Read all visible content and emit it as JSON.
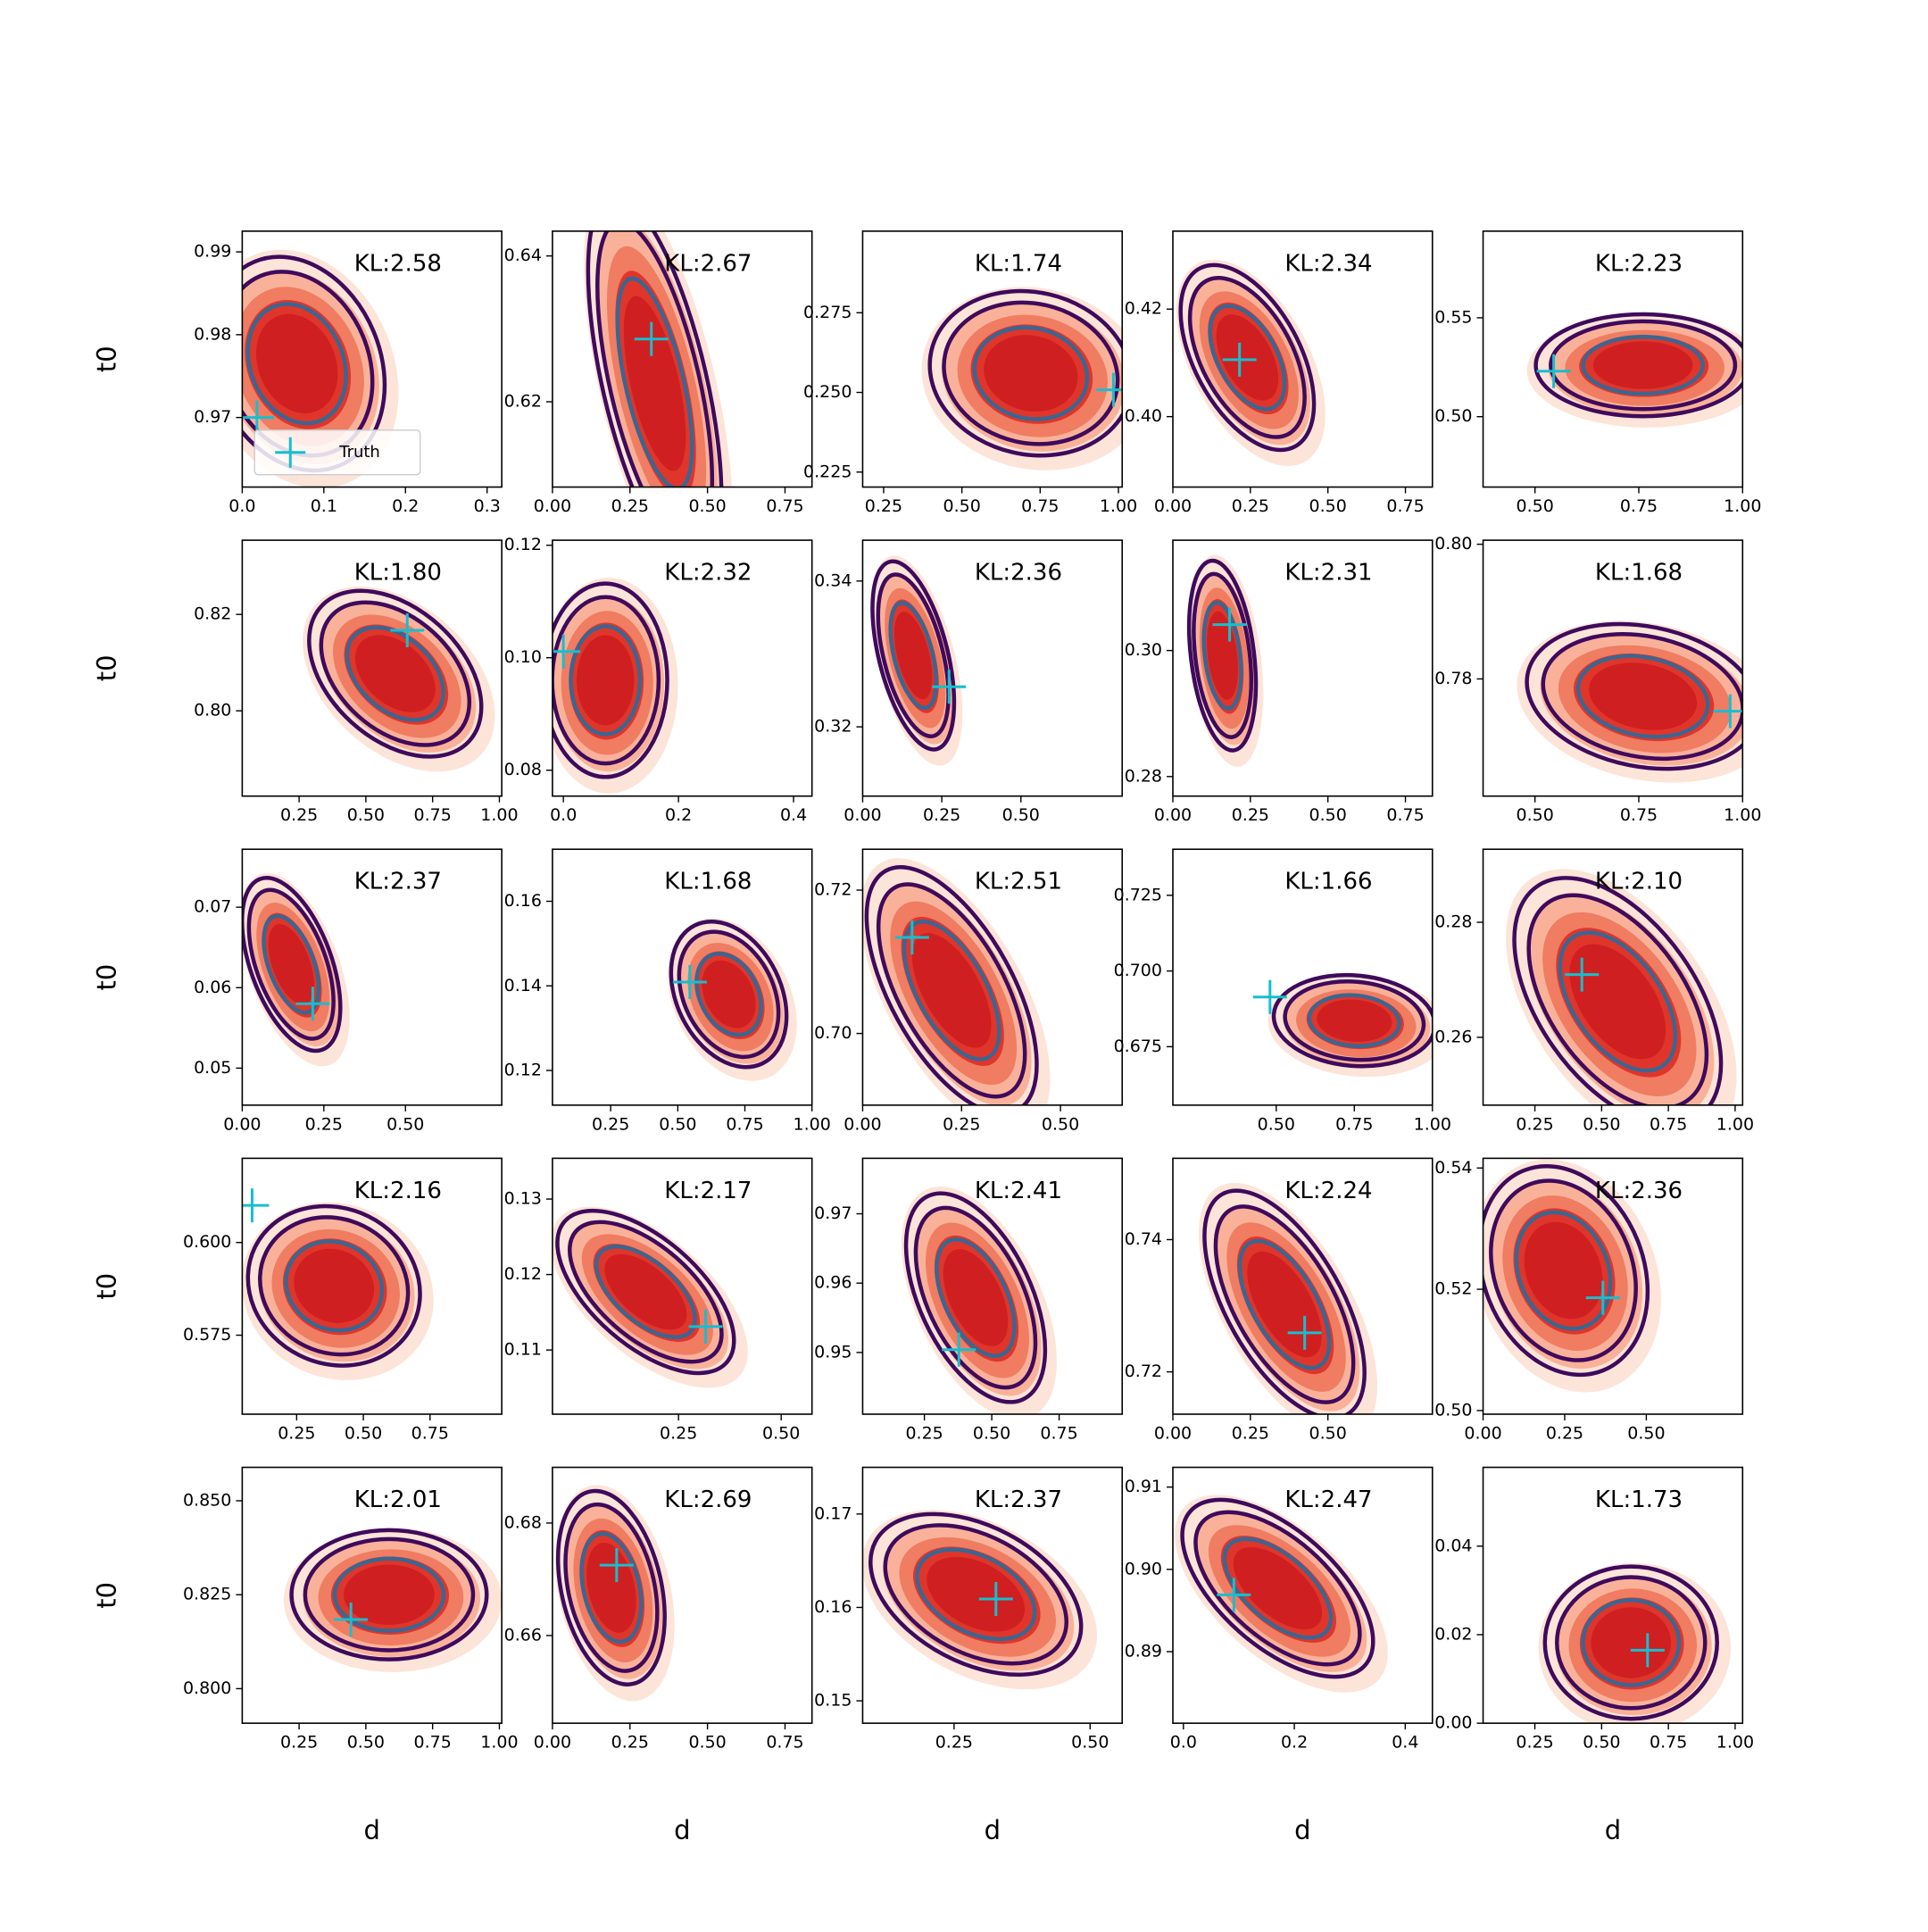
{
  "chart_data": [
    {
      "type": "scatter",
      "title": "KL:2.58",
      "ylabel": "t0",
      "xlim": [
        0,
        0.318
      ],
      "xticks": [
        {
          "value": 0,
          "label": "0.0"
        },
        0.1,
        0.2,
        0.3
      ],
      "ylim": [
        0.9616,
        0.9925
      ],
      "yticks": [
        0.97,
        0.98,
        0.99
      ],
      "series": [
        {
          "name": "Truth",
          "color": "#17becf",
          "x": [
            0.018
          ],
          "y": [
            0.97
          ]
        }
      ],
      "legend": "lower left",
      "density": {
        "center": [
          0.067,
          0.9765
        ],
        "spread": [
          0.05,
          0.006
        ],
        "rho": -0.2
      }
    },
    {
      "type": "scatter",
      "title": "KL:2.67",
      "xlim": [
        0,
        0.837
      ],
      "xticks": [
        {
          "value": 0,
          "label": "0.00"
        },
        0.25,
        {
          "value": 0.5,
          "label": "0.50"
        },
        0.75
      ],
      "ylim": [
        0.6083,
        0.6434
      ],
      "yticks": [
        0.62,
        0.64
      ],
      "series": [
        {
          "color": "#17becf",
          "x": [
            0.319
          ],
          "y": [
            0.6286
          ]
        }
      ],
      "density": {
        "center": [
          0.33,
          0.6225
        ],
        "spread": [
          0.1,
          0.012
        ],
        "rho": -0.6
      }
    },
    {
      "type": "scatter",
      "title": "KL:1.74",
      "xlim": [
        0.183,
        1.012
      ],
      "xticks": [
        0.25,
        {
          "value": 0.5,
          "label": "0.50"
        },
        0.75,
        {
          "value": 1,
          "label": "1.00"
        }
      ],
      "ylim": [
        0.2203,
        0.3006
      ],
      "yticks": [
        0.225,
        {
          "value": 0.25,
          "label": "0.250"
        },
        0.275
      ],
      "series": [
        {
          "color": "#17becf",
          "x": [
            0.984
          ],
          "y": [
            0.2508
          ]
        }
      ],
      "density": {
        "center": [
          0.72,
          0.256
        ],
        "spread": [
          0.15,
          0.012
        ],
        "rho": -0.1
      }
    },
    {
      "type": "scatter",
      "title": "KL:2.34",
      "xlim": [
        0,
        0.837
      ],
      "xticks": [
        {
          "value": 0,
          "label": "0.00"
        },
        0.25,
        {
          "value": 0.5,
          "label": "0.50"
        },
        0.75
      ],
      "ylim": [
        0.3869,
        0.4345
      ],
      "yticks": [
        {
          "value": 0.4,
          "label": "0.40"
        },
        0.42
      ],
      "series": [
        {
          "color": "#17becf",
          "x": [
            0.215
          ],
          "y": [
            0.4106
          ]
        }
      ],
      "density": {
        "center": [
          0.24,
          0.411
        ],
        "spread": [
          0.1,
          0.008
        ],
        "rho": -0.5
      }
    },
    {
      "type": "scatter",
      "title": "KL:2.23",
      "xlim": [
        0.375,
        1.0
      ],
      "xticks": [
        {
          "value": 0.5,
          "label": "0.50"
        },
        0.75,
        {
          "value": 1,
          "label": "1.00"
        }
      ],
      "ylim": [
        0.4644,
        0.5938
      ],
      "yticks": [
        {
          "value": 0.5,
          "label": "0.50"
        },
        0.55
      ],
      "series": [
        {
          "color": "#17becf",
          "x": [
            0.545
          ],
          "y": [
            0.523
          ]
        }
      ],
      "density": {
        "center": [
          0.76,
          0.526
        ],
        "spread": [
          0.12,
          0.012
        ],
        "rho": 0
      }
    },
    {
      "type": "scatter",
      "title": "KL:1.80",
      "ylabel": "t0",
      "xlim": [
        0.037,
        1.009
      ],
      "xticks": [
        0.25,
        {
          "value": 0.5,
          "label": "0.50"
        },
        0.75,
        {
          "value": 1,
          "label": "1.00"
        }
      ],
      "ylim": [
        0.7823,
        0.8354
      ],
      "yticks": [
        {
          "value": 0.8,
          "label": "0.80"
        },
        0.82
      ],
      "series": [
        {
          "color": "#17becf",
          "x": [
            0.655
          ],
          "y": [
            0.8167
          ]
        }
      ],
      "density": {
        "center": [
          0.61,
          0.8077
        ],
        "spread": [
          0.15,
          0.008
        ],
        "rho": -0.4
      }
    },
    {
      "type": "scatter",
      "title": "KL:2.32",
      "xlim": [
        -0.019,
        0.432
      ],
      "xticks": [
        {
          "value": 0,
          "label": "0.0"
        },
        0.2,
        0.4
      ],
      "ylim": [
        0.0754,
        0.1209
      ],
      "yticks": [
        0.08,
        {
          "value": 0.1,
          "label": "0.10"
        },
        0.12
      ],
      "series": [
        {
          "color": "#17becf",
          "x": [
            0.0
          ],
          "y": [
            0.1011
          ]
        }
      ],
      "density": {
        "center": [
          0.073,
          0.096
        ],
        "spread": [
          0.05,
          0.008
        ],
        "rho": 0
      }
    },
    {
      "type": "scatter",
      "title": "KL:2.36",
      "xlim": [
        0,
        0.82
      ],
      "xticks": [
        {
          "value": 0,
          "label": "0.00"
        },
        0.25,
        {
          "value": 0.5,
          "label": "0.50"
        }
      ],
      "ylim": [
        0.3105,
        0.3456
      ],
      "yticks": [
        0.32,
        0.34
      ],
      "series": [
        {
          "color": "#17becf",
          "x": [
            0.273
          ],
          "y": [
            0.3255
          ]
        }
      ],
      "density": {
        "center": [
          0.16,
          0.3298
        ],
        "spread": [
          0.06,
          0.006
        ],
        "rho": -0.5
      }
    },
    {
      "type": "scatter",
      "title": "KL:2.31",
      "xlim": [
        0,
        0.837
      ],
      "xticks": [
        {
          "value": 0,
          "label": "0.00"
        },
        0.25,
        {
          "value": 0.5,
          "label": "0.50"
        },
        0.75
      ],
      "ylim": [
        0.2769,
        0.3175
      ],
      "yticks": [
        0.28,
        {
          "value": 0.3,
          "label": "0.30"
        }
      ],
      "series": [
        {
          "color": "#17becf",
          "x": [
            0.183
          ],
          "y": [
            0.3041
          ]
        }
      ],
      "density": {
        "center": [
          0.16,
          0.2992
        ],
        "spread": [
          0.05,
          0.007
        ],
        "rho": -0.3
      }
    },
    {
      "type": "scatter",
      "title": "KL:1.68",
      "xlim": [
        0.375,
        1.0
      ],
      "xticks": [
        {
          "value": 0.5,
          "label": "0.50"
        },
        0.75,
        {
          "value": 1,
          "label": "1.00"
        }
      ],
      "ylim": [
        0.7626,
        0.8006
      ],
      "yticks": [
        0.78,
        {
          "value": 0.8,
          "label": "0.80"
        }
      ],
      "series": [
        {
          "color": "#17becf",
          "x": [
            0.97
          ],
          "y": [
            0.7752
          ]
        }
      ],
      "density": {
        "center": [
          0.76,
          0.7774
        ],
        "spread": [
          0.13,
          0.005
        ],
        "rho": -0.2
      }
    },
    {
      "type": "scatter",
      "title": "KL:2.37",
      "ylabel": "t0",
      "xlim": [
        0,
        0.795
      ],
      "xticks": [
        {
          "value": 0,
          "label": "0.00"
        },
        0.25,
        {
          "value": 0.5,
          "label": "0.50"
        }
      ],
      "ylim": [
        0.0454,
        0.0772
      ],
      "yticks": [
        0.05,
        0.06,
        0.07
      ],
      "series": [
        {
          "color": "#17becf",
          "x": [
            0.216
          ],
          "y": [
            0.058
          ]
        }
      ],
      "density": {
        "center": [
          0.15,
          0.0629
        ],
        "spread": [
          0.07,
          0.005
        ],
        "rho": -0.5
      }
    },
    {
      "type": "scatter",
      "title": "KL:1.68",
      "xlim": [
        0.033,
        1.0
      ],
      "xticks": [
        0.25,
        {
          "value": 0.5,
          "label": "0.50"
        },
        0.75,
        {
          "value": 1,
          "label": "1.00"
        }
      ],
      "ylim": [
        0.1118,
        0.1723
      ],
      "yticks": [
        0.12,
        0.14,
        0.16
      ],
      "series": [
        {
          "color": "#17becf",
          "x": [
            0.545
          ],
          "y": [
            0.1409
          ]
        }
      ],
      "density": {
        "center": [
          0.69,
          0.138
        ],
        "spread": [
          0.1,
          0.008
        ],
        "rho": -0.3
      }
    },
    {
      "type": "scatter",
      "title": "KL:2.51",
      "xlim": [
        0,
        0.656
      ],
      "xticks": [
        {
          "value": 0,
          "label": "0.00"
        },
        0.25,
        {
          "value": 0.5,
          "label": "0.50"
        }
      ],
      "ylim": [
        0.69,
        0.7257
      ],
      "yticks": [
        {
          "value": 0.7,
          "label": "0.70"
        },
        0.72
      ],
      "series": [
        {
          "color": "#17becf",
          "x": [
            0.125
          ],
          "y": [
            0.7134
          ]
        }
      ],
      "density": {
        "center": [
          0.225,
          0.706
        ],
        "spread": [
          0.1,
          0.008
        ],
        "rho": -0.6
      }
    },
    {
      "type": "scatter",
      "title": "KL:1.66",
      "xlim": [
        0.169,
        1.0
      ],
      "xticks": [
        {
          "value": 0.5,
          "label": "0.50"
        },
        0.75,
        {
          "value": 1,
          "label": "1.00"
        }
      ],
      "ylim": [
        0.6557,
        0.7402
      ],
      "yticks": [
        0.675,
        {
          "value": 0.7,
          "label": "0.700"
        },
        0.725
      ],
      "series": [
        {
          "color": "#17becf",
          "x": [
            0.48
          ],
          "y": [
            0.6914
          ]
        }
      ],
      "density": {
        "center": [
          0.75,
          0.6836
        ],
        "spread": [
          0.12,
          0.007
        ],
        "rho": -0.1
      }
    },
    {
      "type": "scatter",
      "title": "KL:2.10",
      "xlim": [
        0.056,
        1.028
      ],
      "xticks": [
        0.25,
        {
          "value": 0.5,
          "label": "0.50"
        },
        0.75,
        {
          "value": 1,
          "label": "1.00"
        }
      ],
      "ylim": [
        0.2482,
        0.2927
      ],
      "yticks": [
        0.26,
        0.28
      ],
      "series": [
        {
          "color": "#17becf",
          "x": [
            0.426
          ],
          "y": [
            0.2709
          ]
        }
      ],
      "density": {
        "center": [
          0.56,
          0.2662
        ],
        "spread": [
          0.18,
          0.01
        ],
        "rho": -0.5
      }
    },
    {
      "type": "scatter",
      "title": "KL:2.16",
      "ylabel": "t0",
      "xlim": [
        0.046,
        1.019
      ],
      "xticks": [
        0.25,
        {
          "value": 0.5,
          "label": "0.50"
        },
        0.75
      ],
      "ylim": [
        0.5537,
        0.6227
      ],
      "yticks": [
        0.575,
        {
          "value": 0.6,
          "label": "0.600"
        }
      ],
      "series": [
        {
          "color": "#17becf",
          "x": [
            0.083
          ],
          "y": [
            0.61
          ]
        }
      ],
      "density": {
        "center": [
          0.39,
          0.5883
        ],
        "spread": [
          0.15,
          0.01
        ],
        "rho": -0.1
      }
    },
    {
      "type": "scatter",
      "title": "KL:2.17",
      "xlim": [
        -0.057,
        0.575
      ],
      "xticks": [
        0.25,
        {
          "value": 0.5,
          "label": "0.50"
        }
      ],
      "ylim": [
        0.1015,
        0.1354
      ],
      "yticks": [
        0.11,
        0.12,
        0.13
      ],
      "series": [
        {
          "color": "#17becf",
          "x": [
            0.316
          ],
          "y": [
            0.1131
          ]
        }
      ],
      "density": {
        "center": [
          0.17,
          0.1177
        ],
        "spread": [
          0.1,
          0.005
        ],
        "rho": -0.6
      }
    },
    {
      "type": "scatter",
      "title": "KL:2.41",
      "xlim": [
        0.021,
        0.984
      ],
      "xticks": [
        0.25,
        {
          "value": 0.5,
          "label": "0.50"
        },
        0.75
      ],
      "ylim": [
        0.9411,
        0.978
      ],
      "yticks": [
        0.95,
        0.96,
        0.97
      ],
      "series": [
        {
          "color": "#17becf",
          "x": [
            0.378
          ],
          "y": [
            0.9504
          ]
        }
      ],
      "density": {
        "center": [
          0.44,
          0.9579
        ],
        "spread": [
          0.12,
          0.007
        ],
        "rho": -0.5
      }
    },
    {
      "type": "scatter",
      "title": "KL:2.24",
      "xlim": [
        0,
        0.837
      ],
      "xticks": [
        {
          "value": 0,
          "label": "0.00"
        },
        0.25,
        {
          "value": 0.5,
          "label": "0.50"
        }
      ],
      "ylim": [
        0.7136,
        0.7523
      ],
      "yticks": [
        0.72,
        0.74
      ],
      "series": [
        {
          "color": "#17becf",
          "x": [
            0.425
          ],
          "y": [
            0.7259
          ]
        }
      ],
      "density": {
        "center": [
          0.36,
          0.7302
        ],
        "spread": [
          0.12,
          0.008
        ],
        "rho": -0.6
      }
    },
    {
      "type": "scatter",
      "title": "KL:2.36",
      "xlim": [
        0,
        0.795
      ],
      "xticks": [
        {
          "value": 0,
          "label": "0.00"
        },
        0.25,
        {
          "value": 0.5,
          "label": "0.50"
        }
      ],
      "ylim": [
        0.4994,
        0.5416
      ],
      "yticks": [
        {
          "value": 0.5,
          "label": "0.50"
        },
        0.52,
        0.54
      ],
      "series": [
        {
          "color": "#17becf",
          "x": [
            0.367
          ],
          "y": [
            0.5186
          ]
        }
      ],
      "density": {
        "center": [
          0.246,
          0.5231
        ],
        "spread": [
          0.12,
          0.008
        ],
        "rho": -0.2
      }
    },
    {
      "type": "scatter",
      "title": "KL:2.01",
      "ylabel": "t0",
      "xlabel": "d",
      "xlim": [
        0.037,
        1.009
      ],
      "xticks": [
        0.25,
        {
          "value": 0.5,
          "label": "0.50"
        },
        0.75,
        {
          "value": 1,
          "label": "1.00"
        }
      ],
      "ylim": [
        0.7908,
        0.8589
      ],
      "yticks": [
        {
          "value": 0.8,
          "label": "0.800"
        },
        0.825,
        {
          "value": 0.85,
          "label": "0.850"
        }
      ],
      "series": [
        {
          "color": "#17becf",
          "x": [
            0.444
          ],
          "y": [
            0.8184
          ]
        }
      ],
      "density": {
        "center": [
          0.587,
          0.825
        ],
        "spread": [
          0.17,
          0.008
        ],
        "rho": 0
      }
    },
    {
      "type": "scatter",
      "title": "KL:2.69",
      "xlabel": "d",
      "xlim": [
        0,
        0.837
      ],
      "xticks": [
        {
          "value": 0,
          "label": "0.00"
        },
        0.25,
        {
          "value": 0.5,
          "label": "0.50"
        },
        0.75
      ],
      "ylim": [
        0.6444,
        0.6899
      ],
      "yticks": [
        0.66,
        0.68
      ],
      "series": [
        {
          "color": "#17becf",
          "x": [
            0.207
          ],
          "y": [
            0.6725
          ]
        }
      ],
      "density": {
        "center": [
          0.19,
          0.6685
        ],
        "spread": [
          0.08,
          0.008
        ],
        "rho": -0.3
      }
    },
    {
      "type": "scatter",
      "title": "KL:2.37",
      "xlabel": "d",
      "xlim": [
        0.082,
        0.559
      ],
      "xticks": [
        0.25,
        {
          "value": 0.5,
          "label": "0.50"
        }
      ],
      "ylim": [
        0.1476,
        0.175
      ],
      "yticks": [
        0.15,
        0.16,
        0.17
      ],
      "series": [
        {
          "color": "#17becf",
          "x": [
            0.327
          ],
          "y": [
            0.1609
          ]
        }
      ],
      "density": {
        "center": [
          0.29,
          0.1614
        ],
        "spread": [
          0.09,
          0.004
        ],
        "rho": -0.4
      }
    },
    {
      "type": "scatter",
      "title": "KL:2.47",
      "xlabel": "d",
      "xlim": [
        -0.019,
        0.449
      ],
      "xticks": [
        {
          "value": 0,
          "label": "0.0"
        },
        0.2,
        0.4
      ],
      "ylim": [
        0.8813,
        0.9124
      ],
      "yticks": [
        0.89,
        {
          "value": 0.9,
          "label": "0.90"
        },
        0.91
      ],
      "series": [
        {
          "color": "#17becf",
          "x": [
            0.091
          ],
          "y": [
            0.8969
          ]
        }
      ],
      "density": {
        "center": [
          0.17,
          0.8977
        ],
        "spread": [
          0.08,
          0.005
        ],
        "rho": -0.6
      }
    },
    {
      "type": "scatter",
      "title": "KL:1.73",
      "xlabel": "d",
      "xlim": [
        0.056,
        1.028
      ],
      "xticks": [
        0.25,
        {
          "value": 0.5,
          "label": "0.50"
        },
        0.75,
        {
          "value": 1,
          "label": "1.00"
        }
      ],
      "ylim": [
        0,
        0.0578
      ],
      "yticks": [
        {
          "value": 0,
          "label": "0.00"
        },
        0.02,
        0.04
      ],
      "series": [
        {
          "color": "#17becf",
          "x": [
            0.672
          ],
          "y": [
            0.0165
          ]
        }
      ],
      "density": {
        "center": [
          0.61,
          0.0182
        ],
        "spread": [
          0.15,
          0.008
        ],
        "rho": 0
      }
    }
  ]
}
